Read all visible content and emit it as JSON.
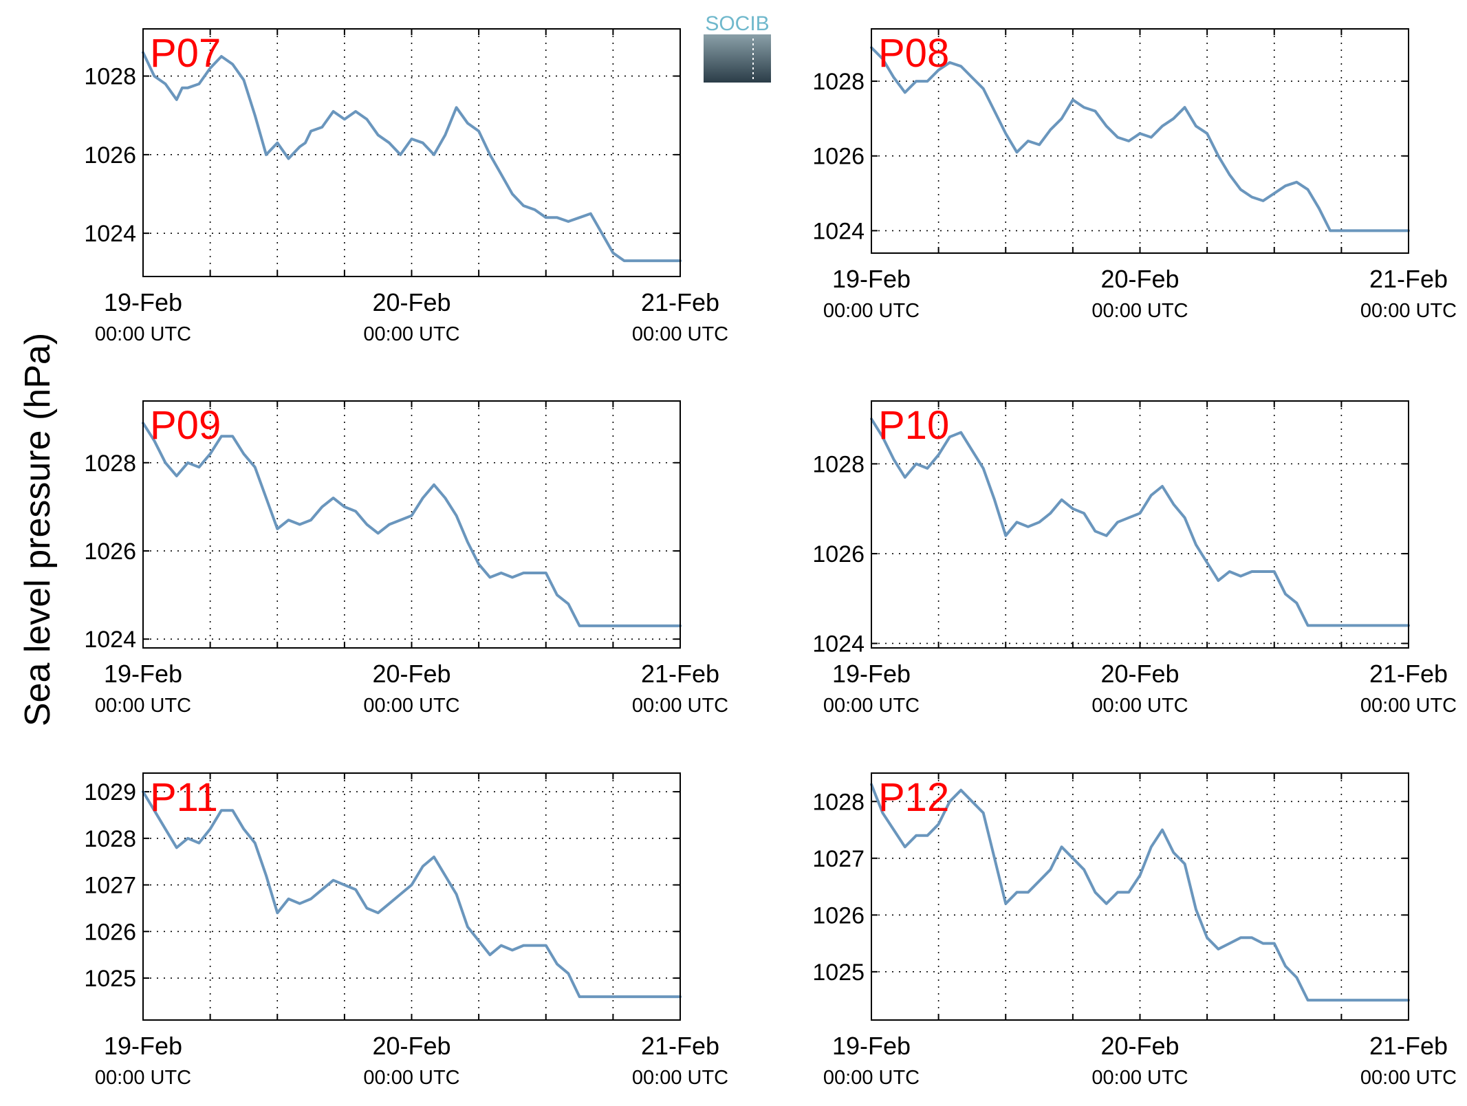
{
  "figure": {
    "ylabel": "Sea level pressure (hPa)",
    "logo_text": "SOCIB",
    "line_color": "#6a96bd",
    "label_color": "#ff0000"
  },
  "chart_data": [
    {
      "type": "line",
      "title": "P07",
      "x_ticks": [
        {
          "label": "19-Feb",
          "sub": "00:00 UTC"
        },
        {
          "label": "20-Feb",
          "sub": "00:00 UTC"
        },
        {
          "label": "21-Feb",
          "sub": "00:00 UTC"
        }
      ],
      "xlim": [
        0,
        48
      ],
      "ylim": [
        1022.9,
        1029.2
      ],
      "yticks": [
        1024,
        1026,
        1028
      ],
      "grid": true,
      "x": [
        0,
        1,
        2,
        3,
        3.5,
        4,
        5,
        6,
        7,
        8,
        9,
        10,
        11,
        12,
        13,
        14,
        14.5,
        15,
        16,
        17,
        18,
        19,
        20,
        21,
        22,
        23,
        24,
        25,
        26,
        27,
        28,
        29,
        30,
        31,
        32,
        33,
        34,
        35,
        36,
        37,
        38,
        39,
        40,
        41,
        42,
        43,
        44,
        45,
        46,
        47,
        48
      ],
      "y": [
        1028.6,
        1028.0,
        1027.8,
        1027.4,
        1027.7,
        1027.7,
        1027.8,
        1028.2,
        1028.5,
        1028.3,
        1027.9,
        1027.0,
        1026.0,
        1026.3,
        1025.9,
        1026.2,
        1026.3,
        1026.6,
        1026.7,
        1027.1,
        1026.9,
        1027.1,
        1026.9,
        1026.5,
        1026.3,
        1026.0,
        1026.4,
        1026.3,
        1026.0,
        1026.5,
        1027.2,
        1026.8,
        1026.6,
        1026.0,
        1025.5,
        1025.0,
        1024.7,
        1024.6,
        1024.4,
        1024.4,
        1024.3,
        1024.4,
        1024.5,
        1024.0,
        1023.5,
        1023.3,
        1023.3,
        1023.3,
        1023.3,
        1023.3,
        1023.3
      ]
    },
    {
      "type": "line",
      "title": "P08",
      "x_ticks": [
        {
          "label": "19-Feb",
          "sub": "00:00 UTC"
        },
        {
          "label": "20-Feb",
          "sub": "00:00 UTC"
        },
        {
          "label": "21-Feb",
          "sub": "00:00 UTC"
        }
      ],
      "xlim": [
        0,
        48
      ],
      "ylim": [
        1023.4,
        1029.4
      ],
      "yticks": [
        1024,
        1026,
        1028
      ],
      "grid": true,
      "x": [
        0,
        1,
        2,
        3,
        4,
        5,
        6,
        7,
        8,
        9,
        10,
        11,
        12,
        13,
        14,
        15,
        16,
        17,
        18,
        19,
        20,
        21,
        22,
        23,
        24,
        25,
        26,
        27,
        28,
        29,
        30,
        31,
        32,
        33,
        34,
        35,
        36,
        37,
        38,
        39,
        40,
        41,
        42,
        43,
        44,
        45,
        46,
        47,
        48
      ],
      "y": [
        1028.9,
        1028.6,
        1028.1,
        1027.7,
        1028.0,
        1028.0,
        1028.3,
        1028.5,
        1028.4,
        1028.1,
        1027.8,
        1027.2,
        1026.6,
        1026.1,
        1026.4,
        1026.3,
        1026.7,
        1027.0,
        1027.5,
        1027.3,
        1027.2,
        1026.8,
        1026.5,
        1026.4,
        1026.6,
        1026.5,
        1026.8,
        1027.0,
        1027.3,
        1026.8,
        1026.6,
        1026.0,
        1025.5,
        1025.1,
        1024.9,
        1024.8,
        1025.0,
        1025.2,
        1025.3,
        1025.1,
        1024.6,
        1024.0,
        1024.0,
        1024.0,
        1024.0,
        1024.0,
        1024.0,
        1024.0,
        1024.0
      ]
    },
    {
      "type": "line",
      "title": "P09",
      "x_ticks": [
        {
          "label": "19-Feb",
          "sub": "00:00 UTC"
        },
        {
          "label": "20-Feb",
          "sub": "00:00 UTC"
        },
        {
          "label": "21-Feb",
          "sub": "00:00 UTC"
        }
      ],
      "xlim": [
        0,
        48
      ],
      "ylim": [
        1023.8,
        1029.4
      ],
      "yticks": [
        1024,
        1026,
        1028
      ],
      "grid": true,
      "x": [
        0,
        1,
        2,
        3,
        4,
        5,
        6,
        7,
        8,
        9,
        10,
        11,
        12,
        13,
        14,
        15,
        16,
        17,
        18,
        19,
        20,
        21,
        22,
        23,
        24,
        25,
        26,
        27,
        28,
        29,
        30,
        31,
        32,
        33,
        34,
        35,
        36,
        37,
        38,
        39,
        40,
        41,
        42,
        43,
        44,
        45,
        46,
        47,
        48
      ],
      "y": [
        1028.9,
        1028.5,
        1028.0,
        1027.7,
        1028.0,
        1027.9,
        1028.2,
        1028.6,
        1028.6,
        1028.2,
        1027.9,
        1027.2,
        1026.5,
        1026.7,
        1026.6,
        1026.7,
        1027.0,
        1027.2,
        1027.0,
        1026.9,
        1026.6,
        1026.4,
        1026.6,
        1026.7,
        1026.8,
        1027.2,
        1027.5,
        1027.2,
        1026.8,
        1026.2,
        1025.7,
        1025.4,
        1025.5,
        1025.4,
        1025.5,
        1025.5,
        1025.5,
        1025.0,
        1024.8,
        1024.3,
        1024.3,
        1024.3,
        1024.3,
        1024.3,
        1024.3,
        1024.3,
        1024.3,
        1024.3,
        1024.3
      ]
    },
    {
      "type": "line",
      "title": "P10",
      "x_ticks": [
        {
          "label": "19-Feb",
          "sub": "00:00 UTC"
        },
        {
          "label": "20-Feb",
          "sub": "00:00 UTC"
        },
        {
          "label": "21-Feb",
          "sub": "00:00 UTC"
        }
      ],
      "xlim": [
        0,
        48
      ],
      "ylim": [
        1023.9,
        1029.4
      ],
      "yticks": [
        1024,
        1026,
        1028
      ],
      "grid": true,
      "x": [
        0,
        1,
        2,
        3,
        4,
        5,
        6,
        7,
        8,
        9,
        10,
        11,
        12,
        13,
        14,
        15,
        16,
        17,
        18,
        19,
        20,
        21,
        22,
        23,
        24,
        25,
        26,
        27,
        28,
        29,
        30,
        31,
        32,
        33,
        34,
        35,
        36,
        37,
        38,
        39,
        40,
        41,
        42,
        43,
        44,
        45,
        46,
        47,
        48
      ],
      "y": [
        1029.0,
        1028.6,
        1028.1,
        1027.7,
        1028.0,
        1027.9,
        1028.2,
        1028.6,
        1028.7,
        1028.3,
        1027.9,
        1027.2,
        1026.4,
        1026.7,
        1026.6,
        1026.7,
        1026.9,
        1027.2,
        1027.0,
        1026.9,
        1026.5,
        1026.4,
        1026.7,
        1026.8,
        1026.9,
        1027.3,
        1027.5,
        1027.1,
        1026.8,
        1026.2,
        1025.8,
        1025.4,
        1025.6,
        1025.5,
        1025.6,
        1025.6,
        1025.6,
        1025.1,
        1024.9,
        1024.4,
        1024.4,
        1024.4,
        1024.4,
        1024.4,
        1024.4,
        1024.4,
        1024.4,
        1024.4,
        1024.4
      ]
    },
    {
      "type": "line",
      "title": "P11",
      "x_ticks": [
        {
          "label": "19-Feb",
          "sub": "00:00 UTC"
        },
        {
          "label": "20-Feb",
          "sub": "00:00 UTC"
        },
        {
          "label": "21-Feb",
          "sub": "00:00 UTC"
        }
      ],
      "xlim": [
        0,
        48
      ],
      "ylim": [
        1024.1,
        1029.4
      ],
      "yticks": [
        1025,
        1026,
        1027,
        1028,
        1029
      ],
      "grid": true,
      "x": [
        0,
        1,
        2,
        3,
        4,
        5,
        6,
        7,
        8,
        9,
        10,
        11,
        12,
        13,
        14,
        15,
        16,
        17,
        18,
        19,
        20,
        21,
        22,
        23,
        24,
        25,
        26,
        27,
        28,
        29,
        30,
        31,
        32,
        33,
        34,
        35,
        36,
        37,
        38,
        39,
        40,
        41,
        42,
        43,
        44,
        45,
        46,
        47,
        48
      ],
      "y": [
        1029.0,
        1028.6,
        1028.2,
        1027.8,
        1028.0,
        1027.9,
        1028.2,
        1028.6,
        1028.6,
        1028.2,
        1027.9,
        1027.2,
        1026.4,
        1026.7,
        1026.6,
        1026.7,
        1026.9,
        1027.1,
        1027.0,
        1026.9,
        1026.5,
        1026.4,
        1026.6,
        1026.8,
        1027.0,
        1027.4,
        1027.6,
        1027.2,
        1026.8,
        1026.1,
        1025.8,
        1025.5,
        1025.7,
        1025.6,
        1025.7,
        1025.7,
        1025.7,
        1025.3,
        1025.1,
        1024.6,
        1024.6,
        1024.6,
        1024.6,
        1024.6,
        1024.6,
        1024.6,
        1024.6,
        1024.6,
        1024.6
      ]
    },
    {
      "type": "line",
      "title": "P12",
      "x_ticks": [
        {
          "label": "19-Feb",
          "sub": "00:00 UTC"
        },
        {
          "label": "20-Feb",
          "sub": "00:00 UTC"
        },
        {
          "label": "21-Feb",
          "sub": "00:00 UTC"
        }
      ],
      "xlim": [
        0,
        48
      ],
      "ylim": [
        1024.15,
        1028.5
      ],
      "yticks": [
        1025,
        1026,
        1027,
        1028
      ],
      "grid": true,
      "x": [
        0,
        1,
        2,
        3,
        4,
        5,
        6,
        7,
        8,
        9,
        10,
        11,
        12,
        13,
        14,
        15,
        16,
        17,
        18,
        19,
        20,
        21,
        22,
        23,
        24,
        25,
        26,
        27,
        28,
        29,
        30,
        31,
        32,
        33,
        34,
        35,
        36,
        37,
        38,
        39,
        40,
        41,
        42,
        43,
        44,
        45,
        46,
        47,
        48
      ],
      "y": [
        1028.3,
        1027.8,
        1027.5,
        1027.2,
        1027.4,
        1027.4,
        1027.6,
        1028.0,
        1028.2,
        1028.0,
        1027.8,
        1027.0,
        1026.2,
        1026.4,
        1026.4,
        1026.6,
        1026.8,
        1027.2,
        1027.0,
        1026.8,
        1026.4,
        1026.2,
        1026.4,
        1026.4,
        1026.7,
        1027.2,
        1027.5,
        1027.1,
        1026.9,
        1026.1,
        1025.6,
        1025.4,
        1025.5,
        1025.6,
        1025.6,
        1025.5,
        1025.5,
        1025.1,
        1024.9,
        1024.5,
        1024.5,
        1024.5,
        1024.5,
        1024.5,
        1024.5,
        1024.5,
        1024.5,
        1024.5,
        1024.5
      ]
    }
  ]
}
